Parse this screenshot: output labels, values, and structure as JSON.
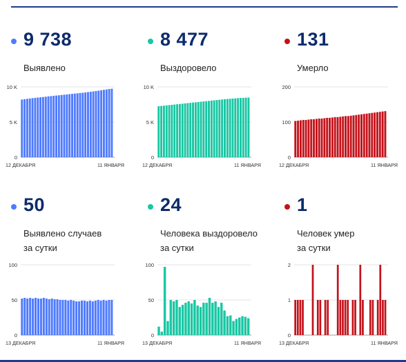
{
  "panels": [
    {
      "value": "9 738",
      "label": "Выявлено",
      "color": "#4f7bff"
    },
    {
      "value": "8 477",
      "label": "Выздоровело",
      "color": "#19c7a4"
    },
    {
      "value": "131",
      "label": "Умерло",
      "color": "#c4121a"
    },
    {
      "value": "50",
      "label": "Выявлено случаев",
      "label2": "за сутки",
      "color": "#4f7bff"
    },
    {
      "value": "24",
      "label": "Человека выздоровело",
      "label2": "за сутки",
      "color": "#19c7a4"
    },
    {
      "value": "1",
      "label": "Человек умер",
      "label2": "за сутки",
      "color": "#c4121a"
    }
  ],
  "chart_data": [
    {
      "type": "bar",
      "x_start": "12 ДЕКАБРЯ",
      "x_end": "11 ЯНВАРЯ",
      "yticks": [
        "10 K",
        "5 K",
        "0"
      ],
      "ylim": [
        0,
        10000
      ],
      "values": [
        8200,
        8250,
        8300,
        8350,
        8400,
        8440,
        8480,
        8520,
        8560,
        8600,
        8650,
        8690,
        8730,
        8770,
        8810,
        8850,
        8890,
        8930,
        8970,
        9010,
        9050,
        9090,
        9130,
        9170,
        9210,
        9260,
        9310,
        9360,
        9410,
        9460,
        9520,
        9580,
        9640,
        9700,
        9738
      ]
    },
    {
      "type": "bar",
      "x_start": "12 ДЕКАБРЯ",
      "x_end": "11 ЯНВАРЯ",
      "yticks": [
        "10 K",
        "5 K",
        "0"
      ],
      "ylim": [
        0,
        10000
      ],
      "values": [
        7250,
        7290,
        7330,
        7370,
        7410,
        7450,
        7490,
        7530,
        7570,
        7610,
        7650,
        7690,
        7730,
        7770,
        7810,
        7850,
        7890,
        7930,
        7970,
        8010,
        8050,
        8090,
        8130,
        8170,
        8210,
        8250,
        8280,
        8310,
        8340,
        8370,
        8400,
        8420,
        8440,
        8460,
        8477
      ]
    },
    {
      "type": "bar",
      "x_start": "12 ДЕКАБРЯ",
      "x_end": "11 ЯНВАРЯ",
      "yticks": [
        "200",
        "100",
        "0"
      ],
      "ylim": [
        0,
        200
      ],
      "values": [
        103,
        104,
        105,
        106,
        106,
        107,
        108,
        108,
        109,
        110,
        110,
        111,
        112,
        112,
        113,
        114,
        114,
        115,
        116,
        117,
        117,
        118,
        119,
        120,
        121,
        122,
        123,
        124,
        125,
        126,
        127,
        128,
        129,
        130,
        131
      ]
    },
    {
      "type": "bar",
      "x_start": "13 ДЕКАБРЯ",
      "x_end": "11 ЯНВАРЯ",
      "yticks": [
        "100",
        "50",
        "0"
      ],
      "ylim": [
        0,
        100
      ],
      "values": [
        52,
        53,
        52,
        53,
        52,
        53,
        52,
        52,
        53,
        52,
        51,
        52,
        51,
        51,
        50,
        50,
        50,
        49,
        50,
        49,
        48,
        48,
        49,
        49,
        48,
        49,
        48,
        49,
        50,
        49,
        50,
        49,
        50,
        50
      ]
    },
    {
      "type": "bar",
      "x_start": "13 ДЕКАБРЯ",
      "x_end": "11 ЯНВАРЯ",
      "yticks": [
        "100",
        "50",
        "0"
      ],
      "ylim": [
        0,
        100
      ],
      "values": [
        12,
        5,
        97,
        20,
        50,
        48,
        50,
        40,
        43,
        46,
        48,
        45,
        50,
        42,
        40,
        46,
        46,
        53,
        46,
        48,
        40,
        46,
        35,
        27,
        28,
        20,
        23,
        25,
        27,
        26,
        24
      ]
    },
    {
      "type": "bar",
      "x_start": "13 ДЕКАБРЯ",
      "x_end": "11 ЯНВАРЯ",
      "yticks": [
        "2",
        "1",
        "0"
      ],
      "ylim": [
        0,
        2
      ],
      "values": [
        1,
        1,
        1,
        1,
        0,
        0,
        0,
        2,
        0,
        1,
        1,
        0,
        1,
        1,
        0,
        0,
        0,
        2,
        1,
        1,
        1,
        1,
        0,
        1,
        1,
        0,
        2,
        1,
        0,
        0,
        1,
        1,
        0,
        1,
        2,
        1,
        1
      ]
    }
  ]
}
